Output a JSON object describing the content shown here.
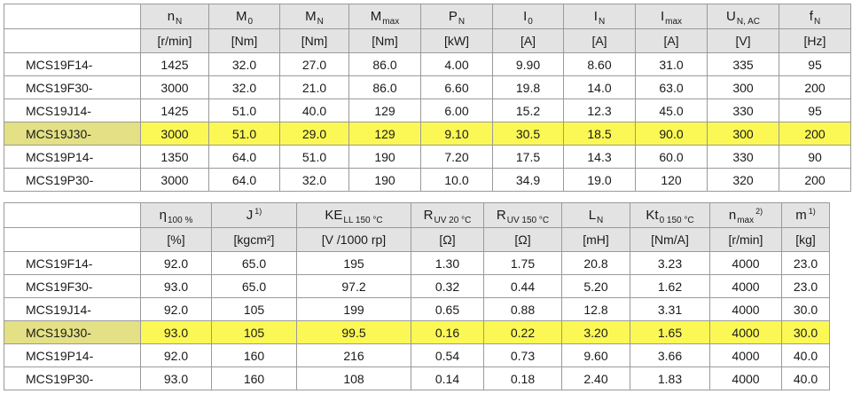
{
  "table1": {
    "headers": [
      {
        "sym": "n",
        "sub": "N",
        "sup": "",
        "unit": "[r/min]"
      },
      {
        "sym": "M",
        "sub": "0",
        "sup": "",
        "unit": "[Nm]"
      },
      {
        "sym": "M",
        "sub": "N",
        "sup": "",
        "unit": "[Nm]"
      },
      {
        "sym": "M",
        "sub": "max",
        "sup": "",
        "unit": "[Nm]"
      },
      {
        "sym": "P",
        "sub": "N",
        "sup": "",
        "unit": "[kW]"
      },
      {
        "sym": "I",
        "sub": "0",
        "sup": "",
        "unit": "[A]"
      },
      {
        "sym": "I",
        "sub": "N",
        "sup": "",
        "unit": "[A]"
      },
      {
        "sym": "I",
        "sub": "max",
        "sup": "",
        "unit": "[A]"
      },
      {
        "sym": "U",
        "sub": "N, AC",
        "sup": "",
        "unit": "[V]"
      },
      {
        "sym": "f",
        "sub": "N",
        "sup": "",
        "unit": "[Hz]"
      }
    ],
    "rows": [
      {
        "label": "MCS19F14-",
        "highlight": false,
        "cells": [
          "1425",
          "32.0",
          "27.0",
          "86.0",
          "4.00",
          "9.90",
          "8.60",
          "31.0",
          "335",
          "95"
        ]
      },
      {
        "label": "MCS19F30-",
        "highlight": false,
        "cells": [
          "3000",
          "32.0",
          "21.0",
          "86.0",
          "6.60",
          "19.8",
          "14.0",
          "63.0",
          "300",
          "200"
        ]
      },
      {
        "label": "MCS19J14-",
        "highlight": false,
        "cells": [
          "1425",
          "51.0",
          "40.0",
          "129",
          "6.00",
          "15.2",
          "12.3",
          "45.0",
          "330",
          "95"
        ]
      },
      {
        "label": "MCS19J30-",
        "highlight": true,
        "cells": [
          "3000",
          "51.0",
          "29.0",
          "129",
          "9.10",
          "30.5",
          "18.5",
          "90.0",
          "300",
          "200"
        ]
      },
      {
        "label": "MCS19P14-",
        "highlight": false,
        "cells": [
          "1350",
          "64.0",
          "51.0",
          "190",
          "7.20",
          "17.5",
          "14.3",
          "60.0",
          "330",
          "90"
        ]
      },
      {
        "label": "MCS19P30-",
        "highlight": false,
        "cells": [
          "3000",
          "64.0",
          "32.0",
          "190",
          "10.0",
          "34.9",
          "19.0",
          "120",
          "320",
          "200"
        ]
      }
    ]
  },
  "table2": {
    "headers": [
      {
        "sym": "η",
        "sub": "100 %",
        "sup": "",
        "unit": "[%]"
      },
      {
        "sym": "J",
        "sub": "",
        "sup": "1)",
        "unit": "[kgcm²]"
      },
      {
        "sym": "KE",
        "sub": "LL 150 °C",
        "sup": "",
        "unit": "[V /1000 rp]"
      },
      {
        "sym": "R",
        "sub": "UV 20 °C",
        "sup": "",
        "unit": "[Ω]"
      },
      {
        "sym": "R",
        "sub": "UV 150 °C",
        "sup": "",
        "unit": "[Ω]"
      },
      {
        "sym": "L",
        "sub": "N",
        "sup": "",
        "unit": "[mH]"
      },
      {
        "sym": "Kt",
        "sub": "0 150 °C",
        "sup": "",
        "unit": "[Nm/A]"
      },
      {
        "sym": "n",
        "sub": "max",
        "sup": "2)",
        "unit": "[r/min]"
      },
      {
        "sym": "m",
        "sub": "",
        "sup": "1)",
        "unit": "[kg]"
      }
    ],
    "rows": [
      {
        "label": "MCS19F14-",
        "highlight": false,
        "cells": [
          "92.0",
          "65.0",
          "195",
          "1.30",
          "1.75",
          "20.8",
          "3.23",
          "4000",
          "23.0"
        ]
      },
      {
        "label": "MCS19F30-",
        "highlight": false,
        "cells": [
          "93.0",
          "65.0",
          "97.2",
          "0.32",
          "0.44",
          "5.20",
          "1.62",
          "4000",
          "23.0"
        ]
      },
      {
        "label": "MCS19J14-",
        "highlight": false,
        "cells": [
          "92.0",
          "105",
          "199",
          "0.65",
          "0.88",
          "12.8",
          "3.31",
          "4000",
          "30.0"
        ]
      },
      {
        "label": "MCS19J30-",
        "highlight": true,
        "cells": [
          "93.0",
          "105",
          "99.5",
          "0.16",
          "0.22",
          "3.20",
          "1.65",
          "4000",
          "30.0"
        ]
      },
      {
        "label": "MCS19P14-",
        "highlight": false,
        "cells": [
          "92.0",
          "160",
          "216",
          "0.54",
          "0.73",
          "9.60",
          "3.66",
          "4000",
          "40.0"
        ]
      },
      {
        "label": "MCS19P30-",
        "highlight": false,
        "cells": [
          "93.0",
          "160",
          "108",
          "0.14",
          "0.18",
          "2.40",
          "1.83",
          "4000",
          "40.0"
        ]
      }
    ]
  }
}
